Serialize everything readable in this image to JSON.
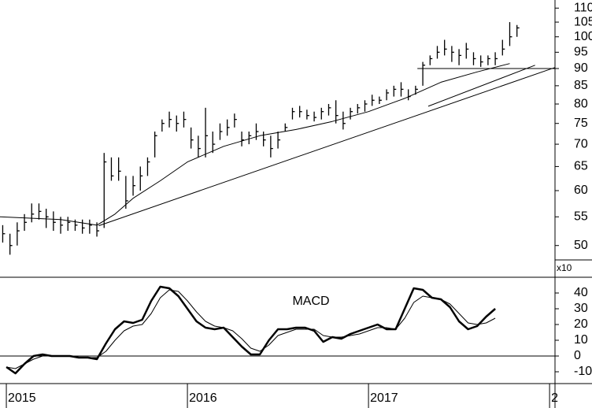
{
  "chart_data": [
    {
      "type": "ohlc",
      "log_scale": true,
      "color": "#000000",
      "xlim": [
        2014.965,
        2018.03
      ],
      "ylim": [
        45,
        113
      ],
      "yticks": [
        50,
        55,
        60,
        65,
        70,
        75,
        80,
        85,
        90,
        95,
        100,
        105,
        110
      ],
      "x": [
        2014.98,
        2015.02,
        2015.06,
        2015.1,
        2015.14,
        2015.18,
        2015.22,
        2015.26,
        2015.3,
        2015.34,
        2015.38,
        2015.42,
        2015.46,
        2015.5,
        2015.54,
        2015.58,
        2015.62,
        2015.66,
        2015.7,
        2015.74,
        2015.78,
        2015.82,
        2015.86,
        2015.9,
        2015.94,
        2015.98,
        2016.02,
        2016.06,
        2016.1,
        2016.14,
        2016.18,
        2016.22,
        2016.26,
        2016.3,
        2016.34,
        2016.38,
        2016.42,
        2016.46,
        2016.5,
        2016.54,
        2016.58,
        2016.62,
        2016.66,
        2016.7,
        2016.74,
        2016.78,
        2016.82,
        2016.86,
        2016.9,
        2016.94,
        2016.98,
        2017.02,
        2017.06,
        2017.1,
        2017.14,
        2017.18,
        2017.22,
        2017.26,
        2017.3,
        2017.34,
        2017.38,
        2017.42,
        2017.46,
        2017.5,
        2017.54,
        2017.58,
        2017.62,
        2017.66,
        2017.7,
        2017.74,
        2017.78,
        2017.82
      ],
      "high": [
        53.5,
        52,
        54,
        55.5,
        57.5,
        57.5,
        56.5,
        56,
        55,
        55,
        54.5,
        54.5,
        54.5,
        54,
        68,
        67,
        67,
        63,
        63,
        65,
        67,
        73,
        76,
        78,
        77,
        78,
        74,
        72,
        79,
        73,
        75,
        76,
        77.5,
        73,
        73,
        75,
        73,
        72,
        73,
        75,
        79,
        79.5,
        78.5,
        78,
        79,
        80,
        81,
        78,
        79,
        80,
        81,
        82.5,
        82,
        84,
        85,
        86,
        84,
        85,
        92,
        94,
        97,
        99,
        97,
        96,
        98,
        95,
        94,
        94,
        95,
        99,
        105,
        104
      ],
      "low": [
        50.5,
        48.5,
        50,
        52.5,
        54,
        54.5,
        53,
        52.5,
        52,
        52.5,
        52.5,
        52,
        52,
        51.5,
        53,
        62,
        62,
        56.5,
        59,
        60,
        63,
        67,
        73,
        74,
        73,
        74,
        69,
        67,
        67,
        68,
        71,
        72,
        74,
        69.5,
        70,
        71,
        69.5,
        67,
        69,
        73,
        76,
        76.5,
        76,
        75.5,
        76,
        77,
        75,
        73.5,
        76,
        77.5,
        78,
        79.5,
        80,
        81,
        82,
        82,
        81,
        82.5,
        85,
        91,
        93,
        94,
        92,
        91,
        93,
        91,
        90.5,
        91,
        91,
        94,
        97,
        100
      ],
      "close": [
        52,
        50,
        52.5,
        54,
        55.5,
        56,
        55,
        54,
        53.5,
        54,
        53.5,
        53,
        53.5,
        52.5,
        66,
        63,
        64,
        58,
        61,
        63,
        66,
        72,
        75,
        76,
        75,
        76,
        71,
        69,
        72,
        70,
        73,
        74,
        76,
        71,
        72,
        73,
        71,
        69,
        71,
        74,
        78,
        78,
        77,
        76.5,
        78,
        79,
        77,
        75,
        78,
        79,
        80,
        81,
        81,
        83,
        84,
        84,
        82,
        84,
        91,
        93,
        95,
        96,
        95,
        94,
        96,
        93,
        92,
        93,
        93,
        96,
        100,
        103
      ],
      "overlays": [
        {
          "color": "#000000",
          "x": [
            2014.965,
            2015.3,
            2015.5,
            2015.6,
            2015.7,
            2015.85,
            2016.0,
            2016.2,
            2016.4,
            2016.6,
            2016.8,
            2017.0,
            2017.2,
            2017.4,
            2017.6,
            2017.78
          ],
          "values": [
            55,
            54.5,
            53.5,
            55.5,
            58.5,
            62,
            66,
            69.5,
            72,
            73.5,
            75.5,
            78,
            81.5,
            86,
            89,
            91.5
          ]
        },
        {
          "color": "#000000",
          "x": [
            2015.51,
            2018.03
          ],
          "values": [
            53.4,
            90.3
          ]
        },
        {
          "color": "#000000",
          "x": [
            2017.33,
            2017.92
          ],
          "values": [
            79.4,
            91
          ]
        },
        {
          "color": "#000000",
          "x": [
            2017.27,
            2018.03
          ],
          "values": [
            90,
            90
          ]
        }
      ]
    },
    {
      "type": "line",
      "title": "MACD",
      "axis_note": "x10",
      "xlim": [
        2014.965,
        2018.03
      ],
      "ylim": [
        -17.5,
        50
      ],
      "yticks": [
        -10,
        0,
        10,
        20,
        30,
        40
      ],
      "xticks": [
        2015,
        2016,
        2017,
        {
          "value": 2018,
          "label": "2"
        }
      ],
      "x": [
        2015,
        2015.05,
        2015.1,
        2015.15,
        2015.2,
        2015.25,
        2015.3,
        2015.35,
        2015.4,
        2015.45,
        2015.5,
        2015.55,
        2015.6,
        2015.65,
        2015.7,
        2015.75,
        2015.8,
        2015.85,
        2015.9,
        2015.95,
        2016,
        2016.05,
        2016.1,
        2016.15,
        2016.2,
        2016.25,
        2016.3,
        2016.35,
        2016.4,
        2016.45,
        2016.5,
        2016.55,
        2016.6,
        2016.65,
        2016.7,
        2016.75,
        2016.8,
        2016.85,
        2016.9,
        2016.95,
        2017,
        2017.05,
        2017.1,
        2017.15,
        2017.2,
        2017.25,
        2017.3,
        2017.35,
        2017.4,
        2017.45,
        2017.5,
        2017.55,
        2017.6,
        2017.65,
        2017.7
      ],
      "series": [
        {
          "color": "#000000",
          "width": 2.5,
          "values": [
            -7,
            -11,
            -5,
            0,
            1,
            0,
            0,
            0,
            -1,
            -1,
            -2,
            8,
            17,
            22,
            21,
            23,
            35,
            44,
            43,
            38,
            30,
            22,
            18,
            17,
            18,
            12,
            6,
            1,
            1,
            10,
            17,
            17,
            18,
            18,
            16,
            9,
            12,
            11,
            14,
            16,
            18,
            20,
            17,
            17,
            30,
            43,
            42,
            37,
            36,
            31,
            22,
            17,
            19,
            25,
            30
          ]
        },
        {
          "color": "#000000",
          "width": 1,
          "values": [
            -7,
            -8,
            -5,
            -2,
            0,
            0,
            0,
            0,
            -1,
            -1,
            -1,
            3,
            10,
            16,
            19,
            20,
            27,
            37,
            42,
            41,
            35,
            28,
            22,
            19,
            18,
            16,
            11,
            5,
            3,
            7,
            13,
            15,
            17,
            17,
            17,
            13,
            12,
            12,
            13,
            14,
            16,
            18,
            18,
            17,
            24,
            34,
            38,
            37,
            36,
            33,
            27,
            21,
            20,
            21,
            24
          ]
        }
      ]
    }
  ]
}
